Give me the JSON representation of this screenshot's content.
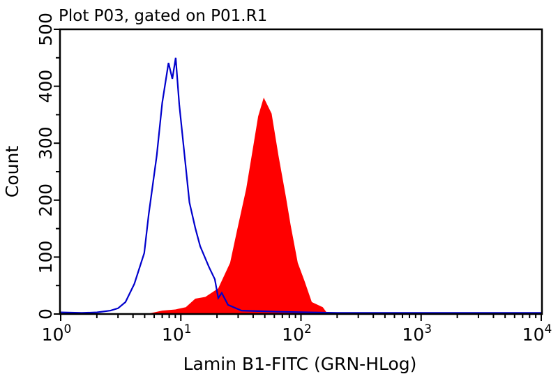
{
  "chart_data": {
    "type": "area",
    "title": "Plot P03, gated on P01.R1",
    "xlabel": "Lamin B1-FITC (GRN-HLog)",
    "ylabel": "Count",
    "x_scale": "log",
    "xlim": [
      1,
      10000
    ],
    "ylim": [
      0,
      500
    ],
    "x_ticks": [
      {
        "base": "10",
        "exp": "0",
        "value": 1
      },
      {
        "base": "10",
        "exp": "1",
        "value": 10
      },
      {
        "base": "10",
        "exp": "2",
        "value": 100
      },
      {
        "base": "10",
        "exp": "3",
        "value": 1000
      },
      {
        "base": "10",
        "exp": "4",
        "value": 10000
      }
    ],
    "y_ticks": [
      "0",
      "100",
      "200",
      "300",
      "400",
      "500"
    ],
    "grid": false,
    "series": [
      {
        "style": "filled",
        "color": "#ff0000",
        "x": [
          5.2,
          7,
          9,
          11,
          13.2,
          16,
          20.5,
          25.7,
          29.4,
          35,
          40,
          44,
          49,
          57,
          65,
          75,
          82,
          94,
          107,
          123,
          152,
          167
        ],
        "y": [
          0,
          6,
          8,
          12,
          27,
          30,
          45,
          90,
          147,
          220,
          294,
          347,
          380,
          352,
          278,
          205,
          156,
          90,
          58,
          21,
          12,
          0
        ]
      },
      {
        "style": "line",
        "color": "#0000cc",
        "x": [
          1,
          1.5,
          2,
          2.6,
          3.0,
          3.46,
          4.1,
          4.96,
          5.4,
          6.3,
          7.0,
          7.9,
          8.5,
          9.07,
          9.7,
          11.1,
          11.8,
          13.2,
          14.5,
          17.2,
          19.2,
          20.5,
          21.9,
          24.7,
          32,
          63,
          200,
          10000
        ],
        "y": [
          3,
          2,
          3,
          6,
          10,
          21,
          53,
          107,
          175,
          278,
          371,
          441,
          413,
          450,
          368,
          249,
          196,
          151,
          119,
          82,
          61,
          28,
          37,
          16,
          6,
          4,
          2,
          2
        ]
      }
    ]
  }
}
